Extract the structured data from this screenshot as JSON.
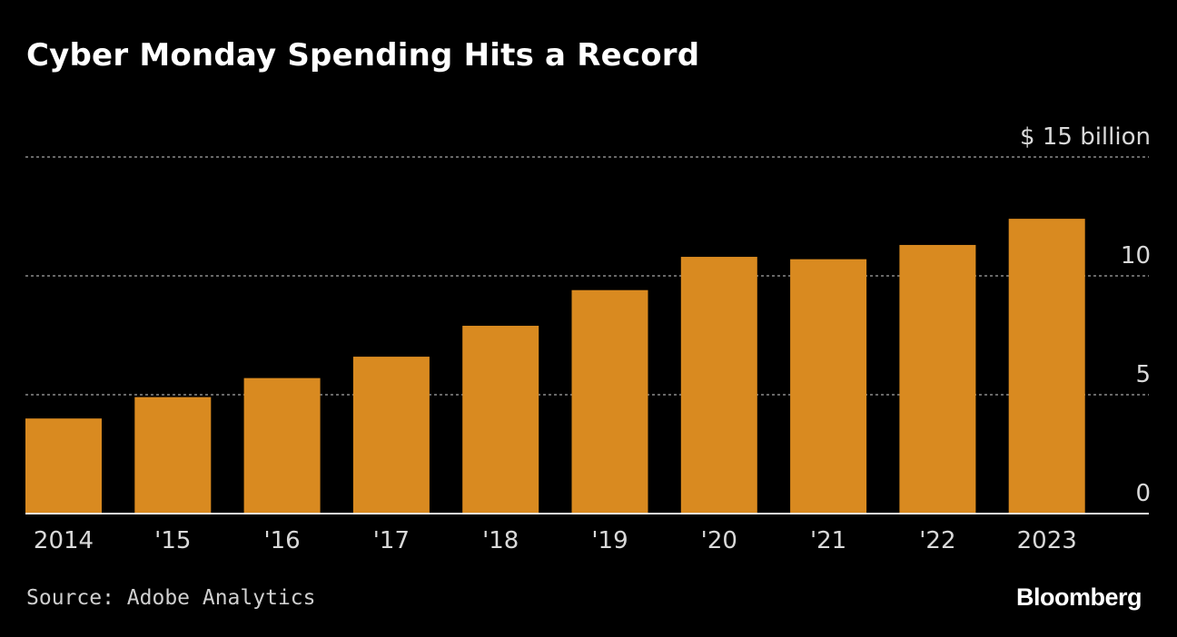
{
  "title": "Cyber Monday Spending Hits a Record",
  "source": "Source: Adobe Analytics",
  "brand": "Bloomberg",
  "colors": {
    "background": "#000000",
    "bar": "#d98a20",
    "grid": "#8a8a8a",
    "text": "#d9d9d9"
  },
  "chart_data": {
    "type": "bar",
    "title": "Cyber Monday Spending Hits a Record",
    "categories": [
      "2014",
      "'15",
      "'16",
      "'17",
      "'18",
      "'19",
      "'20",
      "'21",
      "'22",
      "2023"
    ],
    "values": [
      4.0,
      4.9,
      5.7,
      6.6,
      7.9,
      9.4,
      10.8,
      10.7,
      11.3,
      12.4
    ],
    "ylim": [
      0,
      15
    ],
    "yticks": [
      0,
      5,
      10,
      15
    ],
    "ytick_labels": [
      "0",
      "5",
      "10",
      "$ 15  billion"
    ],
    "xlabel": "",
    "ylabel": "",
    "grid": true,
    "grid_style": "dotted",
    "y_axis_position": "right"
  }
}
